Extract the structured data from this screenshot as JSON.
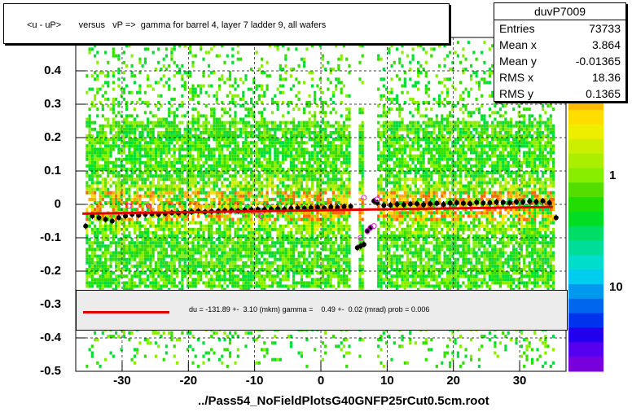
{
  "chart_data": {
    "type": "heatmap",
    "title": "<u - uP>       versus   vP =>  gamma for barrel 4, layer 7 ladder 9, all wafers",
    "xlabel": "",
    "ylabel": "",
    "xlim": [
      -37,
      37
    ],
    "ylim": [
      -0.5,
      0.5
    ],
    "xticks": [
      "-30",
      "-20",
      "-10",
      "0",
      "10",
      "20",
      "30"
    ],
    "yticks": [
      "-0.5",
      "-0.4",
      "-0.3",
      "-0.2",
      "-0.1",
      "0",
      "0.1",
      "0.2",
      "0.3",
      "0.4"
    ],
    "ztick_labels": [
      "1",
      "10"
    ],
    "colors": {
      "accent": "#e00000",
      "profile": "#000000",
      "outlier": "#e010e0",
      "panel": "#ececec"
    },
    "fit_line": {
      "x": [
        -36,
        35
      ],
      "y": [
        -0.0278,
        -0.0076
      ]
    },
    "profile": {
      "x": [
        -35.5,
        -34.5,
        -33.5,
        -32.5,
        -31.5,
        -30.5,
        -29.5,
        -28.5,
        -27.5,
        -26.5,
        -25.5,
        -24.5,
        -23.5,
        -22.5,
        -21.5,
        -20.5,
        -19.5,
        -18.5,
        -17.5,
        -16.5,
        -15.5,
        -14.5,
        -13.5,
        -12.5,
        -11.5,
        -10.5,
        -9.5,
        -8.5,
        -7.5,
        -6.5,
        -5.5,
        -4.5,
        -3.5,
        -2.5,
        -1.5,
        -0.5,
        0.5,
        1.5,
        2.5,
        3.5,
        4.5,
        5.5,
        6.0,
        6.5,
        7.0,
        7.5,
        8.0,
        8.5,
        9.5,
        10.5,
        11.5,
        12.5,
        13.5,
        14.5,
        15.5,
        16.5,
        17.5,
        18.5,
        19.5,
        20.5,
        21.5,
        22.5,
        23.5,
        24.5,
        25.5,
        26.5,
        27.5,
        28.5,
        29.5,
        30.5,
        31.5,
        32.5,
        33.5,
        34.5,
        35.5
      ],
      "y": [
        -0.065,
        -0.035,
        -0.04,
        -0.045,
        -0.05,
        -0.04,
        -0.035,
        -0.03,
        -0.032,
        -0.03,
        -0.028,
        -0.03,
        -0.027,
        -0.025,
        -0.026,
        -0.024,
        -0.022,
        -0.02,
        -0.023,
        -0.021,
        -0.02,
        -0.019,
        -0.018,
        -0.02,
        -0.017,
        -0.016,
        -0.015,
        -0.016,
        -0.014,
        -0.013,
        -0.015,
        -0.012,
        -0.011,
        -0.012,
        -0.01,
        -0.009,
        -0.011,
        -0.008,
        -0.009,
        -0.007,
        -0.006,
        -0.13,
        -0.125,
        -0.12,
        -0.08,
        -0.07,
        0.01,
        0.005,
        -0.003,
        -0.002,
        0.0,
        -0.001,
        0.001,
        0.002,
        -0.001,
        0.002,
        0.003,
        0.0,
        0.004,
        0.005,
        0.003,
        0.002,
        0.006,
        0.004,
        0.005,
        0.007,
        0.006,
        0.005,
        0.008,
        0.007,
        0.009,
        0.008,
        0.01,
        0.005,
        -0.04
      ]
    },
    "outliers": {
      "x": [
        6.5,
        7.5,
        8.5,
        6.0,
        7.0,
        8.0,
        -29,
        -26,
        -9
      ],
      "y": [
        0.02,
        -0.07,
        0.015,
        -0.1,
        -0.08,
        -0.065,
        -0.005,
        -0.005,
        -0.035
      ]
    }
  },
  "title_box": {
    "text": "<u - uP>       versus   vP =>  gamma for barrel 4, layer 7 ladder 9, all wafers"
  },
  "stats": {
    "name": "duvP7009",
    "rows": [
      {
        "label": "Entries",
        "value": "73733"
      },
      {
        "label": "Mean x",
        "value": "3.864"
      },
      {
        "label": "Mean y",
        "value": "-0.01365"
      },
      {
        "label": "RMS x",
        "value": "18.36"
      },
      {
        "label": "RMS y",
        "value": "0.1365"
      }
    ]
  },
  "fit": {
    "text": "du = -131.89 +-  3.10 (mkm) gamma =    0.49 +-  0.02 (mrad) prob = 0.006"
  },
  "footer": {
    "filename": "../Pass54_NoFieldPlotsG40GNFP25rCut0.5cm.root"
  }
}
